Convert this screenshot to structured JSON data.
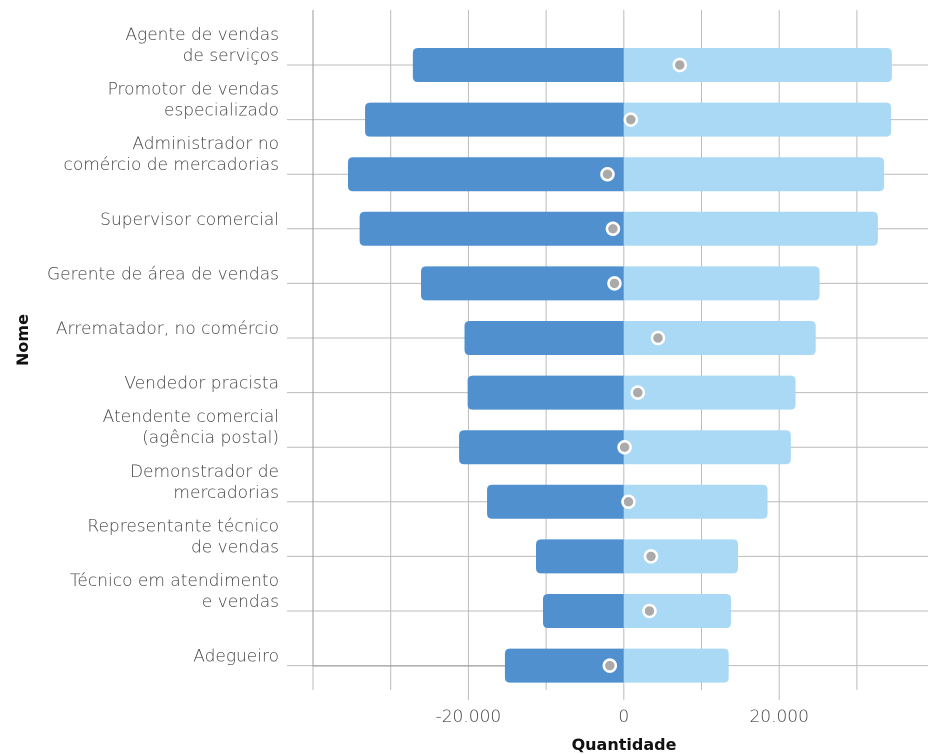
{
  "chart_data": {
    "type": "diverging-bar",
    "x_label": "Quantidade",
    "y_label": "Nome",
    "categories": [
      [
        "Agente de vendas",
        "de serviços"
      ],
      [
        "Promotor de vendas",
        "especializado"
      ],
      [
        "Administrador no",
        "comércio de mercadorias"
      ],
      [
        "Supervisor comercial"
      ],
      [
        "Gerente de área de vendas"
      ],
      [
        "Arrematador, no comércio"
      ],
      [
        "Vendedor pracista"
      ],
      [
        "Atendente comercial",
        "(agência postal)"
      ],
      [
        "Demonstrador de",
        "mercadorias"
      ],
      [
        "Representante técnico",
        "de vendas"
      ],
      [
        "Técnico em atendimento",
        "e vendas"
      ],
      [
        "Adegueiro"
      ]
    ],
    "series": [
      {
        "color": "#5190cf",
        "values": [
          -27150,
          -33300,
          -35500,
          -34000,
          -26100,
          -20500,
          -20100,
          -21200,
          -17600,
          -11300,
          -10400,
          -15300
        ]
      },
      {
        "color": "#aad9f5",
        "values": [
          34500,
          34400,
          33500,
          32700,
          25200,
          24700,
          22100,
          21500,
          18500,
          14700,
          13800,
          13500
        ]
      },
      {
        "color": "#aaaaaa",
        "marker": "dot",
        "values": [
          7200,
          900,
          -2100,
          -1400,
          -1200,
          4400,
          1800,
          100,
          600,
          3500,
          3300,
          -1800
        ]
      }
    ],
    "xlim": [
      -40000,
      39150
    ],
    "xticks": [
      {
        "value": -20000,
        "label": "-20.000"
      },
      0,
      {
        "value": 20000,
        "label": "20.000"
      }
    ],
    "xminor": [
      -40000,
      -30000,
      -10000,
      10000,
      30000
    ],
    "grid": true
  }
}
